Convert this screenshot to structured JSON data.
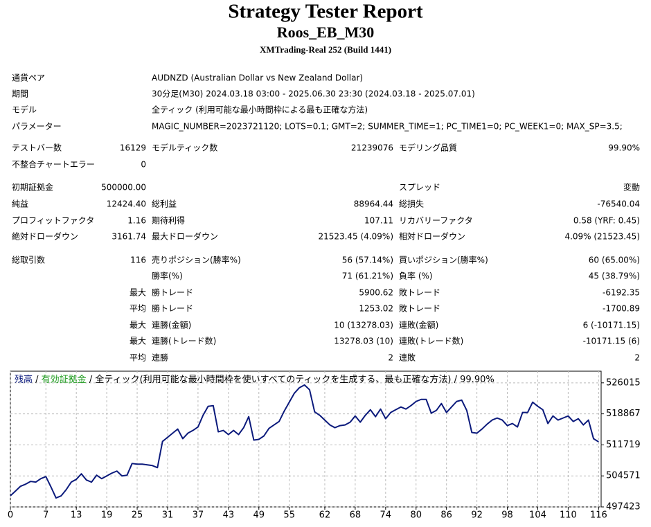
{
  "header": {
    "title": "Strategy Tester Report",
    "subtitle": "Roos_EB_M30",
    "server": "XMTrading-Real 252 (Build 1441)"
  },
  "report": {
    "rows": [
      [
        "通貨ペア",
        null,
        "AUDNZD (Australian Dollar vs New Zealand Dollar)",
        null,
        null,
        null
      ],
      [
        "期間",
        null,
        "30分足(M30) 2024.03.18 03:00 - 2025.06.30 23:30 (2024.03.18 - 2025.07.01)",
        null,
        null,
        null
      ],
      [
        "モデル",
        null,
        "全ティック (利用可能な最小時間枠による最も正確な方法)",
        null,
        null,
        null
      ],
      [
        "パラメーター",
        null,
        "MAGIC_NUMBER=2023721120; LOTS=0.1; GMT=2; SUMMER_TIME=1; PC_TIME1=0; PC_WEEK1=0; MAX_SP=3.5;",
        null,
        null,
        null
      ],
      [
        "テストバー数",
        "16129",
        "モデルティック数",
        "21239076",
        "モデリング品質",
        "99.90%"
      ],
      [
        "不整合チャートエラー",
        "0",
        null,
        null,
        null,
        null
      ],
      [
        "初期証拠金",
        "500000.00",
        null,
        null,
        "スプレッド",
        "変動"
      ],
      [
        "純益",
        "12424.40",
        "総利益",
        "88964.44",
        "総損失",
        "-76540.04"
      ],
      [
        "プロフィットファクタ",
        "1.16",
        "期待利得",
        "107.11",
        "リカバリーファクタ",
        "0.58 (YRF: 0.45)"
      ],
      [
        "絶対ドローダウン",
        "3161.74",
        "最大ドローダウン",
        "21523.45 (4.09%)",
        "相対ドローダウン",
        "4.09% (21523.45)"
      ],
      [
        "総取引数",
        "116",
        "売りポジション(勝率%)",
        "56 (57.14%)",
        "買いポジション(勝率%)",
        "60 (65.00%)"
      ],
      [
        null,
        null,
        "勝率(%)",
        "71 (61.21%)",
        "負率 (%)",
        "45 (38.79%)"
      ],
      [
        null,
        "最大",
        "勝トレード",
        "5900.62",
        "敗トレード",
        "-6192.35"
      ],
      [
        null,
        "平均",
        "勝トレード",
        "1253.02",
        "敗トレード",
        "-1700.89"
      ],
      [
        null,
        "最大",
        "連勝(金額)",
        "10 (13278.03)",
        "連敗(金額)",
        "6 (-10171.15)"
      ],
      [
        null,
        "最大",
        "連勝(トレード数)",
        "13278.03 (10)",
        "連敗(トレード数)",
        "-10171.15 (6)"
      ],
      [
        null,
        "平均",
        "連勝",
        "2",
        "連敗",
        "2"
      ]
    ]
  },
  "chart_data": {
    "type": "line",
    "separator": " / ",
    "equity_label": "有効証拠金",
    "equity_color": "#1a9a1a",
    "subtitle": "全ティック(利用可能な最小時間枠を使いすべてのティックを生成する、最も正確な方法) / 99.90%",
    "x": [
      0,
      1,
      2,
      3,
      4,
      5,
      6,
      7,
      8,
      9,
      10,
      11,
      12,
      13,
      14,
      15,
      16,
      17,
      18,
      19,
      20,
      21,
      22,
      23,
      24,
      25,
      26,
      27,
      28,
      29,
      30,
      31,
      32,
      33,
      34,
      35,
      36,
      37,
      38,
      39,
      40,
      41,
      42,
      43,
      44,
      45,
      46,
      47,
      48,
      49,
      50,
      51,
      52,
      53,
      54,
      55,
      56,
      57,
      58,
      59,
      60,
      61,
      62,
      63,
      64,
      65,
      66,
      67,
      68,
      69,
      70,
      71,
      72,
      73,
      74,
      75,
      76,
      77,
      78,
      79,
      80,
      81,
      82,
      83,
      84,
      85,
      86,
      87,
      88,
      89,
      90,
      91,
      92,
      93,
      94,
      95,
      96,
      97,
      98,
      99,
      100,
      101,
      102,
      103,
      104,
      105,
      106,
      107,
      108,
      109,
      110,
      111,
      112,
      113,
      114,
      115,
      116
    ],
    "series": [
      {
        "name": "残高",
        "color": "#0b1a7c",
        "values": [
          500000,
          501075,
          502187,
          502663,
          503299,
          503140,
          503934,
          504410,
          502028,
          499487,
          499964,
          501393,
          503140,
          503775,
          505045,
          503616,
          503140,
          504728,
          503934,
          504569,
          505204,
          505681,
          504569,
          504728,
          507427,
          507269,
          507269,
          507110,
          506951,
          506475,
          512509,
          513462,
          514415,
          515367,
          513144,
          514415,
          515050,
          515844,
          518543,
          520608,
          520767,
          514732,
          515050,
          514097,
          515050,
          514097,
          515685,
          518226,
          512827,
          512985,
          513779,
          515526,
          516320,
          517114,
          519496,
          521561,
          523625,
          524895,
          525531,
          524419,
          519337,
          518543,
          517432,
          516320,
          515685,
          516161,
          516320,
          516955,
          518385,
          516955,
          518543,
          519814,
          518226,
          519973,
          517749,
          519179,
          519814,
          520449,
          519973,
          520767,
          521719,
          522196,
          522196,
          519020,
          519655,
          521243,
          519179,
          520449,
          521719,
          522037,
          519655,
          514573,
          514415,
          515367,
          516479,
          517432,
          517908,
          517432,
          516161,
          516638,
          515844,
          519179,
          519179,
          521561,
          520608,
          519814,
          516638,
          518385,
          517432,
          517908,
          518385,
          517114,
          517749,
          516320,
          517432,
          513144,
          512424
        ]
      }
    ],
    "xlim": [
      0,
      116.5
    ],
    "ylim": [
      497423,
      528700
    ],
    "xticks": [
      0,
      7,
      13,
      19,
      25,
      31,
      37,
      43,
      49,
      55,
      62,
      68,
      74,
      80,
      86,
      92,
      98,
      104,
      110,
      116
    ],
    "yticks": [
      497423,
      504571,
      511719,
      518867,
      526015
    ],
    "grid": true
  }
}
